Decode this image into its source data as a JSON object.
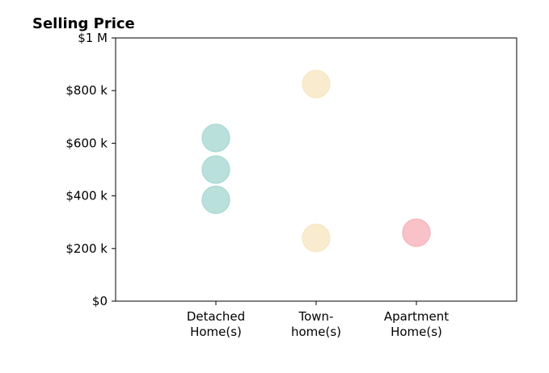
{
  "chart_data": {
    "type": "scatter",
    "title": "Selling Price",
    "xlabel": "",
    "ylabel": "",
    "categories": [
      "Detached\nHome(s)",
      "Town-\nhome(s)",
      "Apartment\nHome(s)"
    ],
    "ylim": [
      0,
      1000000
    ],
    "xlim": [
      0,
      4
    ],
    "yticks": [
      {
        "value": 0,
        "label": "$0"
      },
      {
        "value": 200000,
        "label": "$200 k"
      },
      {
        "value": 400000,
        "label": "$400 k"
      },
      {
        "value": 600000,
        "label": "$600 k"
      },
      {
        "value": 800000,
        "label": "$800 k"
      },
      {
        "value": 1000000,
        "label": "$1 M"
      }
    ],
    "grid": false,
    "series": [
      {
        "category": "Detached\nHome(s)",
        "x": 1,
        "values": [
          620000,
          500000,
          385000
        ],
        "color": "#a8d8d2"
      },
      {
        "category": "Town-\nhome(s)",
        "x": 2,
        "values": [
          825000,
          240000
        ],
        "color": "#f7e6c2"
      },
      {
        "category": "Apartment\nHome(s)",
        "x": 3,
        "values": [
          260000
        ],
        "color": "#f6b3ba"
      }
    ]
  }
}
